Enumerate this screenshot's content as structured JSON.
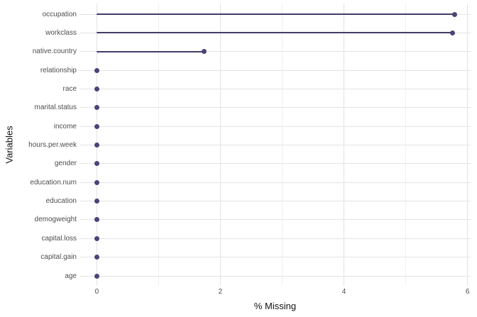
{
  "chart_data": {
    "type": "scatter",
    "variant": "lollipop",
    "title": "",
    "xlabel": "% Missing",
    "ylabel": "Variables",
    "categories": [
      "occupation",
      "workclass",
      "native.country",
      "relationship",
      "race",
      "marital.status",
      "income",
      "hours.per.week",
      "gender",
      "education.num",
      "education",
      "demogweight",
      "capital.loss",
      "capital.gain",
      "age"
    ],
    "values": [
      5.79,
      5.76,
      1.74,
      0,
      0,
      0,
      0,
      0,
      0,
      0,
      0,
      0,
      0,
      0,
      0
    ],
    "xlim": [
      -0.28,
      6.05
    ],
    "xticks_major": [
      0,
      2,
      4,
      6
    ],
    "xticks_minor": [
      1,
      3,
      5
    ],
    "grid": true,
    "legend": false,
    "colors": {
      "stem": "#423d68",
      "point": "#4a4475",
      "grid_major": "#e3e3e3",
      "grid_minor": "#f0f0f0",
      "axis_text": "#4d4d4d",
      "axis_title": "#111111",
      "background": "#ffffff"
    }
  }
}
